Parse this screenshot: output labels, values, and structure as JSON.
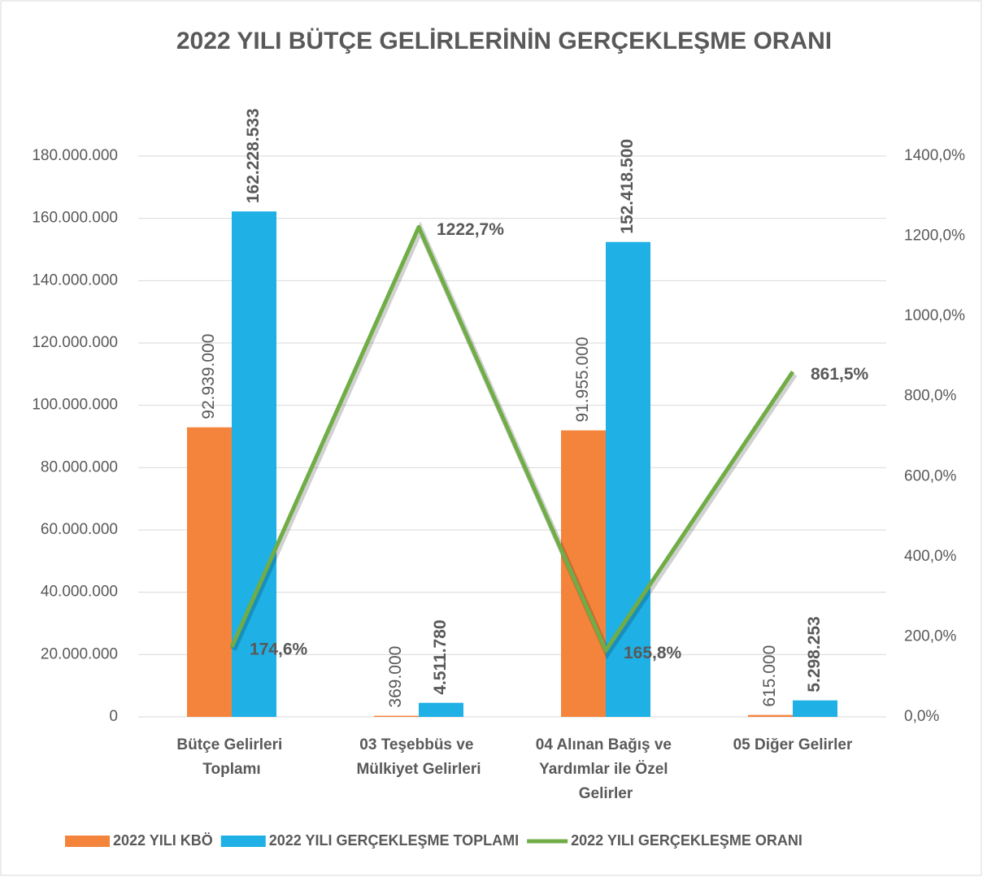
{
  "chart_data": {
    "type": "bar-line",
    "title": "2022 YILI BÜTÇE GELİRLERİNİN GERÇEKLEŞME ORANI",
    "categories": [
      "Bütçe Gelirleri Toplamı",
      "03 Teşebbüs ve Mülkiyet Gelirleri",
      "04 Alınan Bağış ve Yardımlar ile Özel Gelirler",
      "05 Diğer Gelirler"
    ],
    "series": [
      {
        "name": "2022 YILI KBÖ",
        "type": "bar",
        "color": "#f4843c",
        "values": [
          92939000,
          369000,
          91955000,
          615000
        ],
        "value_labels": [
          "92.939.000",
          "369.000",
          "91.955.000",
          "615.000"
        ]
      },
      {
        "name": "2022 YILI GERÇEKLEŞME TOPLAMI",
        "type": "bar",
        "color": "#1fb0e6",
        "values": [
          162228533,
          4511780,
          152418500,
          5298253
        ],
        "value_labels": [
          "162.228.533",
          "4.511.780",
          "152.418.500",
          "5.298.253"
        ]
      },
      {
        "name": "2022 YILI GERÇEKLEŞME ORANI",
        "type": "line",
        "axis": "y2",
        "color": "#70ad47",
        "values": [
          174.6,
          1222.7,
          165.8,
          861.5
        ],
        "value_labels": [
          "174,6%",
          "1222,7%",
          "165,8%",
          "861,5%"
        ]
      }
    ],
    "ylim": [
      0,
      180000000
    ],
    "yticks": [
      0,
      {
        "value": 20000000,
        "label": "20.000.000"
      },
      {
        "value": 40000000,
        "label": "40.000.000"
      },
      {
        "value": 60000000,
        "label": "60.000.000"
      },
      {
        "value": 80000000,
        "label": "80.000.000"
      },
      {
        "value": 100000000,
        "label": "100.000.000"
      },
      {
        "value": 120000000,
        "label": "120.000.000"
      },
      {
        "value": 140000000,
        "label": "140.000.000"
      },
      {
        "value": 160000000,
        "label": "160.000.000"
      },
      {
        "value": 180000000,
        "label": "180.000.000"
      }
    ],
    "y2lim": [
      0,
      1400
    ],
    "y2ticks": [
      {
        "value": 0,
        "label": "0,0%"
      },
      {
        "value": 200,
        "label": "200,0%"
      },
      {
        "value": 400,
        "label": "400,0%"
      },
      {
        "value": 600,
        "label": "600,0%"
      },
      {
        "value": 800,
        "label": "800,0%"
      },
      {
        "value": 1000,
        "label": "1000,0%"
      },
      {
        "value": 1200,
        "label": "1200,0%"
      },
      {
        "value": 1400,
        "label": "1400,0%"
      }
    ],
    "grid": true,
    "legend": "bottom"
  }
}
